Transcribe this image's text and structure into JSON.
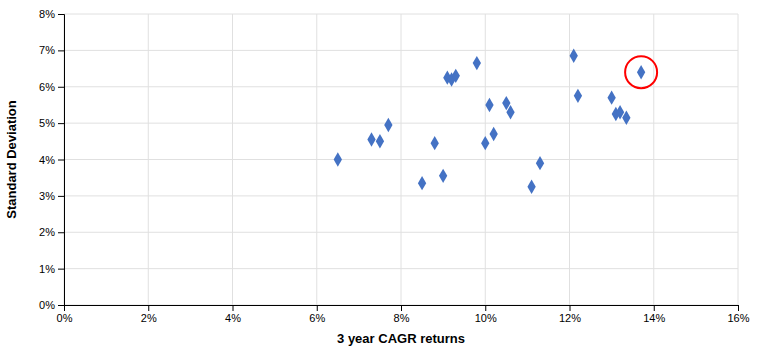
{
  "chart_data": {
    "type": "scatter",
    "xlabel": "3 year CAGR returns",
    "ylabel": "Standard Deviation",
    "xlim": [
      0,
      16
    ],
    "ylim": [
      0,
      8
    ],
    "xticks": [
      {
        "value": 0,
        "label": "0%"
      },
      {
        "value": 2,
        "label": "2%"
      },
      {
        "value": 4,
        "label": "4%"
      },
      {
        "value": 6,
        "label": "6%"
      },
      {
        "value": 8,
        "label": "8%"
      },
      {
        "value": 10,
        "label": "10%"
      },
      {
        "value": 12,
        "label": "12%"
      },
      {
        "value": 14,
        "label": "14%"
      },
      {
        "value": 16,
        "label": "16%"
      }
    ],
    "yticks": [
      {
        "value": 0,
        "label": "0%"
      },
      {
        "value": 1,
        "label": "1%"
      },
      {
        "value": 2,
        "label": "2%"
      },
      {
        "value": 3,
        "label": "3%"
      },
      {
        "value": 4,
        "label": "4%"
      },
      {
        "value": 5,
        "label": "5%"
      },
      {
        "value": 6,
        "label": "6%"
      },
      {
        "value": 7,
        "label": "7%"
      },
      {
        "value": 8,
        "label": "8%"
      }
    ],
    "grid": true,
    "series": [
      {
        "type": "scatter",
        "marker": "diamond",
        "color": "#4472C4",
        "x": [
          6.5,
          7.3,
          7.5,
          7.7,
          8.5,
          8.8,
          9.0,
          9.1,
          9.2,
          9.3,
          9.8,
          10.0,
          10.1,
          10.2,
          10.5,
          10.6,
          11.1,
          11.3,
          12.1,
          12.2,
          13.0,
          13.1,
          13.2,
          13.35
        ],
        "values": [
          4.0,
          4.55,
          4.5,
          4.95,
          3.35,
          4.45,
          3.55,
          6.25,
          6.2,
          6.3,
          6.65,
          4.45,
          5.5,
          4.7,
          5.55,
          5.3,
          3.25,
          3.9,
          6.85,
          5.75,
          5.7,
          5.25,
          5.3,
          5.15
        ]
      },
      {
        "type": "scatter",
        "marker": "diamond",
        "color": "#4472C4",
        "x": [
          13.7
        ],
        "values": [
          6.4
        ]
      },
      {
        "type": "scatter",
        "marker": "ring",
        "color": "red",
        "x": [
          13.7
        ],
        "values": [
          6.4
        ]
      }
    ]
  }
}
